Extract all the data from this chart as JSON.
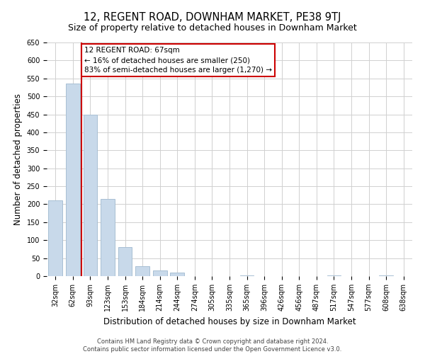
{
  "title": "12, REGENT ROAD, DOWNHAM MARKET, PE38 9TJ",
  "subtitle": "Size of property relative to detached houses in Downham Market",
  "xlabel": "Distribution of detached houses by size in Downham Market",
  "ylabel": "Number of detached properties",
  "categories": [
    "32sqm",
    "62sqm",
    "93sqm",
    "123sqm",
    "153sqm",
    "184sqm",
    "214sqm",
    "244sqm",
    "274sqm",
    "305sqm",
    "335sqm",
    "365sqm",
    "396sqm",
    "426sqm",
    "456sqm",
    "487sqm",
    "517sqm",
    "547sqm",
    "577sqm",
    "608sqm",
    "638sqm"
  ],
  "values": [
    210,
    535,
    450,
    215,
    80,
    28,
    15,
    10,
    0,
    0,
    0,
    2,
    0,
    0,
    0,
    0,
    1,
    0,
    0,
    1,
    0
  ],
  "bar_color": "#c8d9ea",
  "bar_edge_color": "#a8bfd4",
  "vline_color": "#cc0000",
  "vline_xindex": 1.5,
  "annotation_text": "12 REGENT ROAD: 67sqm\n← 16% of detached houses are smaller (250)\n83% of semi-detached houses are larger (1,270) →",
  "annotation_box_color": "#ffffff",
  "annotation_box_edge_color": "#cc0000",
  "ylim": [
    0,
    650
  ],
  "yticks": [
    0,
    50,
    100,
    150,
    200,
    250,
    300,
    350,
    400,
    450,
    500,
    550,
    600,
    650
  ],
  "footer_line1": "Contains HM Land Registry data © Crown copyright and database right 2024.",
  "footer_line2": "Contains public sector information licensed under the Open Government Licence v3.0.",
  "title_fontsize": 10.5,
  "subtitle_fontsize": 9,
  "axis_label_fontsize": 8.5,
  "tick_fontsize": 7,
  "annotation_fontsize": 7.5,
  "footer_fontsize": 6,
  "background_color": "#ffffff",
  "grid_color": "#d0d0d0"
}
